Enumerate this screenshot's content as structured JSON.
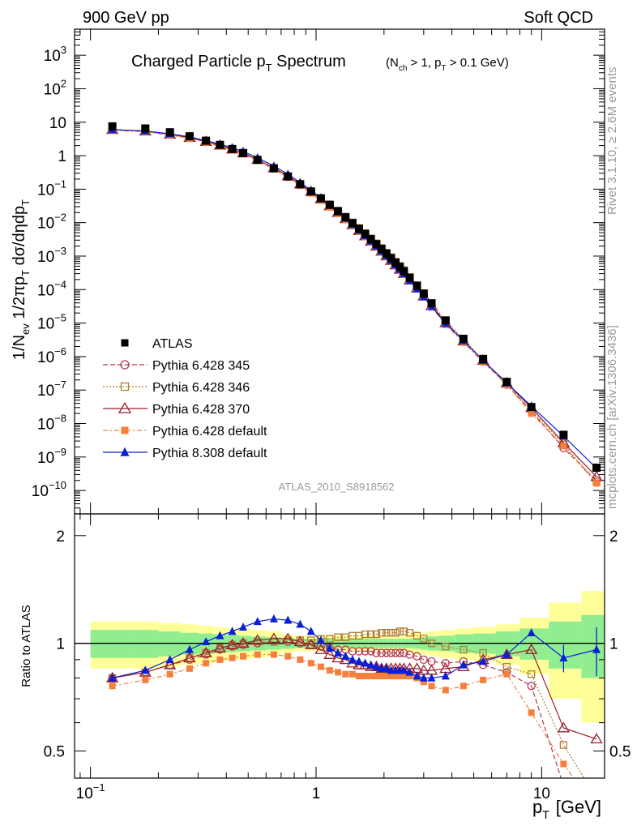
{
  "header": {
    "left": "900 GeV pp",
    "right": "Soft QCD"
  },
  "title": {
    "main_pre": "Charged Particle p",
    "main_sub": "T",
    "main_post": " Spectrum",
    "cond_pre": "(N",
    "cond_sub1": "ch",
    "cond_mid": " > 1, p",
    "cond_sub2": "T",
    "cond_post": " > 0.1 GeV)"
  },
  "side_labels": {
    "rivet": "Rivet 3.1.10, ≥ 2.6M events",
    "mcplots": "mcplots.cern.ch [arXiv:1306.3436]"
  },
  "analysis_tag": "ATLAS_2010_S8918562",
  "ylabel_main": {
    "p1": "1/N",
    "s1": "ev",
    "p2": " 1/2πp",
    "s2": "T",
    "p3": " dσ/dηdp",
    "s3": "T"
  },
  "ylabel_ratio": "Ratio to ATLAS",
  "xlabel": {
    "p": "p",
    "s": "T",
    "unit": "[GeV]"
  },
  "main_ytick_labels": [
    {
      "v": 1000.0,
      "m": "10",
      "e": "3"
    },
    {
      "v": 100.0,
      "m": "10",
      "e": "2"
    },
    {
      "v": 10,
      "m": "10",
      "e": ""
    },
    {
      "v": 1,
      "m": "1",
      "e": ""
    },
    {
      "v": 0.1,
      "m": "10",
      "e": "−1"
    },
    {
      "v": 0.01,
      "m": "10",
      "e": "−2"
    },
    {
      "v": 0.001,
      "m": "10",
      "e": "−3"
    },
    {
      "v": 0.0001,
      "m": "10",
      "e": "−4"
    },
    {
      "v": 1e-05,
      "m": "10",
      "e": "−5"
    },
    {
      "v": 1e-06,
      "m": "10",
      "e": "−6"
    },
    {
      "v": 1e-07,
      "m": "10",
      "e": "−7"
    },
    {
      "v": 1e-08,
      "m": "10",
      "e": "−8"
    },
    {
      "v": 1e-09,
      "m": "10",
      "e": "−9"
    },
    {
      "v": 1e-10,
      "m": "10",
      "e": "−10"
    }
  ],
  "ratio_ytick_labels": [
    {
      "v": 2,
      "t": "2"
    },
    {
      "v": 1,
      "t": "1"
    },
    {
      "v": 0.5,
      "t": "0.5"
    }
  ],
  "xtick_labels": [
    {
      "v": 0.1,
      "m": "10",
      "e": "−1"
    },
    {
      "v": 1,
      "m": "1",
      "e": ""
    },
    {
      "v": 10,
      "m": "10",
      "e": ""
    }
  ],
  "legend": [
    {
      "name": "ATLAS",
      "color": "#000000",
      "marker": "filled-square",
      "dash": ""
    },
    {
      "name": "Pythia 6.428 345",
      "color": "#b2394f",
      "marker": "open-circle",
      "dash": "dashed"
    },
    {
      "name": "Pythia 6.428 346",
      "color": "#b07d2e",
      "marker": "open-square",
      "dash": "dotted"
    },
    {
      "name": "Pythia 6.428 370",
      "color": "#9a1f2b",
      "marker": "open-triangle",
      "dash": "solid"
    },
    {
      "name": "Pythia 6.428 default",
      "color": "#f5803e",
      "marker": "filled-square",
      "dash": "dashdot"
    },
    {
      "name": "Pythia 8.308 default",
      "color": "#0a1fd6",
      "marker": "filled-triangle",
      "dash": "solid"
    }
  ],
  "colors": {
    "band_outer": "#ffff99",
    "band_inner": "#90ee90",
    "unity_line": "#000000"
  },
  "chart_data": {
    "type": "line",
    "xscale": "log",
    "xlim": [
      0.085,
      19
    ],
    "main": {
      "yscale": "log",
      "ylim": [
        2e-11,
        6000.0
      ]
    },
    "ratio": {
      "yscale": "log",
      "ylim": [
        0.42,
        2.3
      ]
    },
    "x": [
      0.125,
      0.175,
      0.225,
      0.275,
      0.325,
      0.375,
      0.425,
      0.475,
      0.55,
      0.65,
      0.75,
      0.85,
      0.95,
      1.05,
      1.15,
      1.25,
      1.35,
      1.45,
      1.55,
      1.65,
      1.75,
      1.85,
      1.95,
      2.05,
      2.15,
      2.25,
      2.35,
      2.45,
      2.6,
      2.8,
      3.0,
      3.25,
      3.75,
      4.5,
      5.5,
      7.0,
      9.0,
      12.5,
      17.5
    ],
    "atlas": [
      7.5,
      6.5,
      5.0,
      3.8,
      2.8,
      2.1,
      1.58,
      1.2,
      0.75,
      0.42,
      0.24,
      0.14,
      0.085,
      0.053,
      0.034,
      0.022,
      0.0145,
      0.0097,
      0.0066,
      0.0046,
      0.0032,
      0.00228,
      0.00164,
      0.00119,
      0.00087,
      0.00064,
      0.000475,
      0.000355,
      0.000225,
      0.00013,
      7.6e-05,
      3.9e-05,
      1.2e-05,
      3.4e-06,
      8.5e-07,
      1.75e-07,
      3.1e-08,
      4.6e-09,
      4.8e-10
    ],
    "band_outer_half_width": [
      0.15,
      0.15,
      0.14,
      0.13,
      0.12,
      0.11,
      0.1,
      0.1,
      0.09,
      0.08,
      0.06,
      0.05,
      0.05,
      0.05,
      0.05,
      0.05,
      0.05,
      0.05,
      0.05,
      0.05,
      0.05,
      0.05,
      0.05,
      0.05,
      0.05,
      0.05,
      0.05,
      0.05,
      0.06,
      0.07,
      0.07,
      0.08,
      0.09,
      0.1,
      0.11,
      0.13,
      0.18,
      0.3,
      0.4
    ],
    "band_inner_half_width": [
      0.09,
      0.09,
      0.08,
      0.07,
      0.065,
      0.06,
      0.055,
      0.05,
      0.045,
      0.04,
      0.035,
      0.03,
      0.03,
      0.03,
      0.03,
      0.03,
      0.03,
      0.03,
      0.03,
      0.03,
      0.03,
      0.03,
      0.03,
      0.03,
      0.03,
      0.03,
      0.03,
      0.03,
      0.03,
      0.035,
      0.04,
      0.045,
      0.05,
      0.06,
      0.065,
      0.08,
      0.1,
      0.15,
      0.2
    ],
    "ratios": [
      {
        "name": "Pythia 6.428 345",
        "values": [
          0.8,
          0.83,
          0.87,
          0.9,
          0.93,
          0.96,
          0.98,
          0.99,
          1.0,
          1.01,
          1.01,
          1.0,
          0.99,
          0.98,
          0.97,
          0.96,
          0.96,
          0.95,
          0.95,
          0.95,
          0.95,
          0.94,
          0.94,
          0.94,
          0.94,
          0.94,
          0.94,
          0.94,
          0.93,
          0.92,
          0.9,
          0.89,
          0.88,
          0.89,
          0.87,
          0.83,
          0.76,
          0.4,
          0.41
        ]
      },
      {
        "name": "Pythia 6.428 346",
        "values": [
          0.8,
          0.83,
          0.87,
          0.91,
          0.94,
          0.97,
          0.99,
          1.0,
          1.01,
          1.01,
          1.02,
          1.02,
          1.02,
          1.03,
          1.03,
          1.04,
          1.04,
          1.05,
          1.05,
          1.06,
          1.06,
          1.06,
          1.07,
          1.07,
          1.07,
          1.07,
          1.08,
          1.08,
          1.07,
          1.05,
          1.03,
          1.0,
          0.98,
          0.96,
          0.94,
          0.86,
          0.82,
          0.52,
          0.37
        ]
      },
      {
        "name": "Pythia 6.428 370",
        "values": [
          0.8,
          0.83,
          0.87,
          0.91,
          0.94,
          0.97,
          0.99,
          1.0,
          1.02,
          1.03,
          1.03,
          1.01,
          0.99,
          0.96,
          0.93,
          0.91,
          0.9,
          0.88,
          0.87,
          0.87,
          0.86,
          0.86,
          0.85,
          0.85,
          0.85,
          0.85,
          0.85,
          0.85,
          0.85,
          0.85,
          0.84,
          0.84,
          0.85,
          0.86,
          0.9,
          0.93,
          0.96,
          0.58,
          0.54
        ]
      },
      {
        "name": "Pythia 6.428 default",
        "values": [
          0.76,
          0.79,
          0.82,
          0.85,
          0.88,
          0.9,
          0.91,
          0.92,
          0.93,
          0.93,
          0.92,
          0.9,
          0.88,
          0.86,
          0.84,
          0.83,
          0.82,
          0.82,
          0.81,
          0.81,
          0.81,
          0.81,
          0.81,
          0.81,
          0.81,
          0.81,
          0.81,
          0.81,
          0.81,
          0.8,
          0.78,
          0.76,
          0.74,
          0.76,
          0.79,
          0.82,
          0.64,
          0.46,
          0.34
        ]
      },
      {
        "name": "Pythia 8.308 default",
        "values": [
          0.8,
          0.84,
          0.9,
          0.96,
          1.01,
          1.05,
          1.08,
          1.11,
          1.15,
          1.17,
          1.16,
          1.13,
          1.08,
          1.02,
          0.97,
          0.94,
          0.92,
          0.9,
          0.89,
          0.88,
          0.87,
          0.86,
          0.85,
          0.85,
          0.84,
          0.84,
          0.84,
          0.84,
          0.83,
          0.81,
          0.8,
          0.8,
          0.81,
          0.87,
          0.89,
          0.93,
          1.07,
          0.91,
          0.96
        ]
      }
    ],
    "ratio_errors": {
      "Pythia 8.308 default": [
        [
          37,
          0.08
        ],
        [
          38,
          0.15
        ]
      ]
    }
  }
}
